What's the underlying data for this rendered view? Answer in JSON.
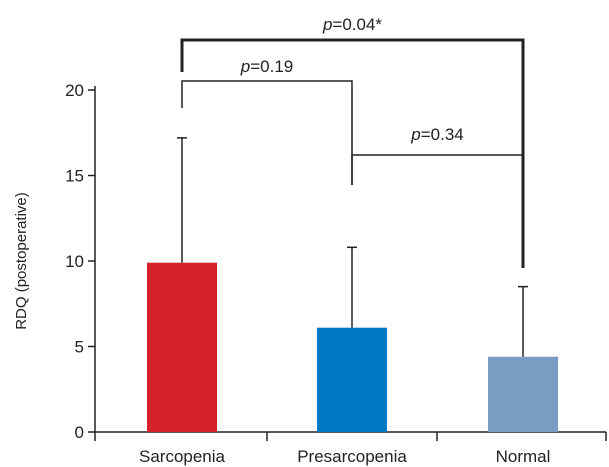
{
  "chart_data": {
    "type": "bar",
    "title": "",
    "xlabel": "",
    "ylabel": "RDQ (postoperative)",
    "ylim": [
      0,
      20
    ],
    "yticks": [
      0,
      5,
      10,
      15,
      20
    ],
    "categories": [
      "Sarcopenia",
      "Presarcopenia",
      "Normal"
    ],
    "values": [
      9.9,
      6.1,
      4.4
    ],
    "errors": [
      7.3,
      4.7,
      4.1
    ],
    "colors": [
      "#d4222a",
      "#0077c2",
      "#7a9cc0"
    ],
    "significance": [
      {
        "from": 0,
        "to": 1,
        "p_symbol": "p",
        "p_value": "=0.19"
      },
      {
        "from": 1,
        "to": 2,
        "p_symbol": "p",
        "p_value": "=0.34"
      },
      {
        "from": 0,
        "to": 2,
        "p_symbol": "p",
        "p_value": "=0.04*"
      }
    ]
  }
}
